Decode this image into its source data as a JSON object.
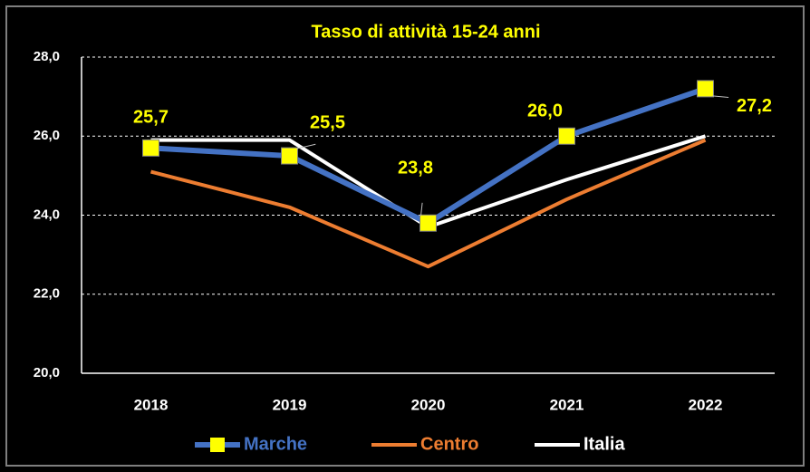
{
  "chart_data": {
    "type": "line",
    "title": "Tasso di attività 15-24 anni",
    "categories": [
      "2018",
      "2019",
      "2020",
      "2021",
      "2022"
    ],
    "series": [
      {
        "name": "Marche",
        "color": "#4472c4",
        "marker_color": "#ffff00",
        "values": [
          25.7,
          25.5,
          23.8,
          26.0,
          27.2
        ],
        "value_labels": [
          "25,7",
          "25,5",
          "23,8",
          "26,0",
          "27,2"
        ]
      },
      {
        "name": "Centro",
        "color": "#ed7d31",
        "values": [
          25.1,
          24.2,
          22.7,
          24.4,
          25.9
        ]
      },
      {
        "name": "Italia",
        "color": "#ffffff",
        "values": [
          25.9,
          25.9,
          23.7,
          24.9,
          26.0
        ]
      }
    ],
    "ylim": [
      20,
      28
    ],
    "yticks": [
      {
        "value": 20,
        "label": "20,0"
      },
      {
        "value": 22,
        "label": "22,0"
      },
      {
        "value": 24,
        "label": "24,0"
      },
      {
        "value": 26,
        "label": "26,0"
      },
      {
        "value": 28,
        "label": "28,0"
      }
    ],
    "grid": true,
    "legend": "bottom"
  }
}
